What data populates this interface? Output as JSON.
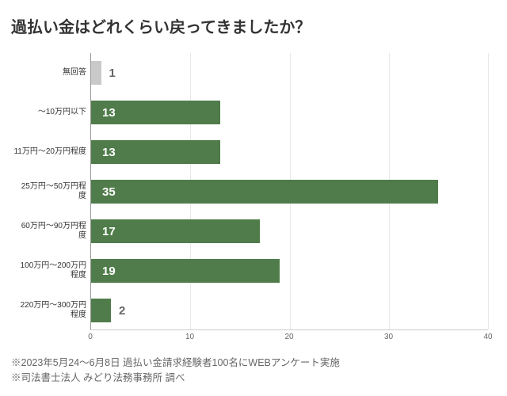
{
  "title": "過払い金はどれくらい戻ってきましたか？",
  "chart": {
    "type": "bar-horizontal",
    "xmax": 40,
    "xticks": [
      0,
      10,
      20,
      30,
      40
    ],
    "bar_color_main": "#4f7c4a",
    "bar_color_muted": "#c9c9c9",
    "value_color_inside": "#ffffff",
    "value_color_outside": "#666666",
    "grid_color": "#e8e8e8",
    "axis_color": "#999999",
    "rows": [
      {
        "label": "無回答",
        "value": 1,
        "color": "#c9c9c9",
        "value_pos": "outside"
      },
      {
        "label": "〜10万円以下",
        "value": 13,
        "color": "#4f7c4a",
        "value_pos": "inside"
      },
      {
        "label": "11万円〜20万円程度",
        "value": 13,
        "color": "#4f7c4a",
        "value_pos": "inside"
      },
      {
        "label": "25万円〜50万円程度",
        "value": 35,
        "color": "#4f7c4a",
        "value_pos": "inside"
      },
      {
        "label": "60万円〜90万円程度",
        "value": 17,
        "color": "#4f7c4a",
        "value_pos": "inside"
      },
      {
        "label": "100万円〜200万円程度",
        "value": 19,
        "color": "#4f7c4a",
        "value_pos": "inside"
      },
      {
        "label": "220万円〜300万円程度",
        "value": 2,
        "color": "#4f7c4a",
        "value_pos": "outside"
      }
    ]
  },
  "footnotes": [
    "※2023年5月24〜6月8日 過払い金請求経験者100名にWEBアンケート実施",
    "※司法書士法人 みどり法務事務所 調べ"
  ]
}
